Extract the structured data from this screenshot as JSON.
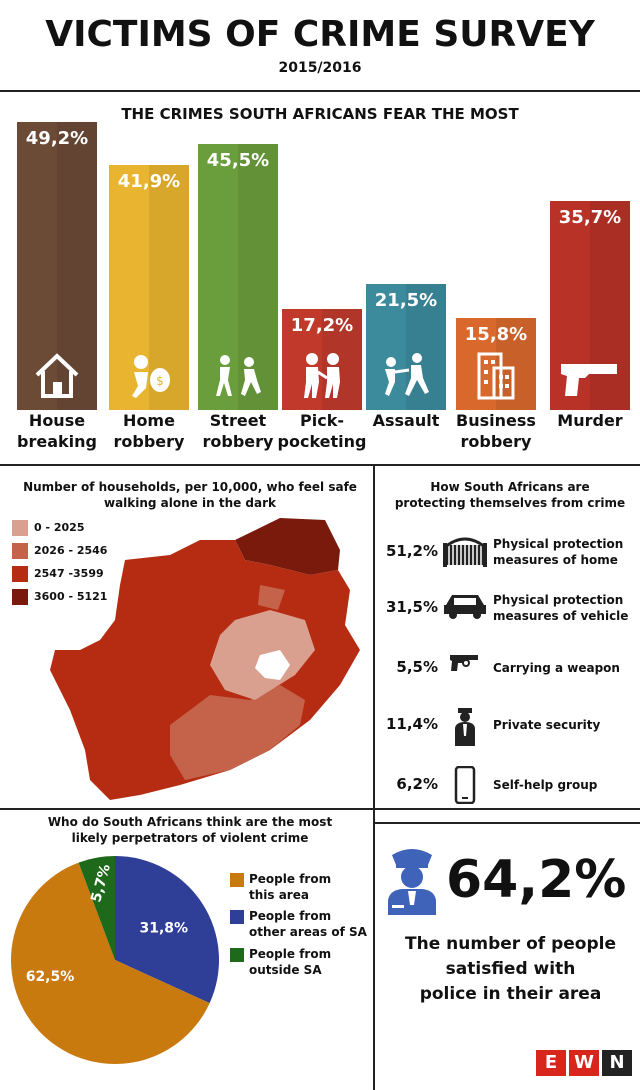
{
  "header": {
    "title": "VICTIMS OF CRIME SURVEY",
    "subtitle": "2015/2016"
  },
  "fear": {
    "title": "THE CRIMES SOUTH AFRICANS FEAR THE MOST",
    "chart_data": {
      "type": "bar",
      "title": "THE CRIMES SOUTH AFRICANS FEAR THE MOST",
      "categories": [
        "House breaking",
        "Home robbery",
        "Street robbery",
        "Pick-pocketing",
        "Assault",
        "Business robbery",
        "Murder"
      ],
      "values": [
        49.2,
        41.9,
        45.5,
        17.2,
        21.5,
        15.8,
        35.7
      ],
      "value_labels": [
        "49,2%",
        "41,9%",
        "45,5%",
        "17,2%",
        "21,5%",
        "15,8%",
        "35,7%"
      ],
      "label_lines": [
        [
          "House",
          "breaking"
        ],
        [
          "Home",
          "robbery"
        ],
        [
          "Street",
          "robbery"
        ],
        [
          "Pick-",
          "pocketing"
        ],
        [
          "Assault",
          ""
        ],
        [
          "Business",
          "robbery"
        ],
        [
          "Murder",
          ""
        ]
      ],
      "icons": [
        "house-icon",
        "robber-icon",
        "street-robbery-icon",
        "pickpocket-icon",
        "assault-icon",
        "building-icon",
        "gun-icon"
      ],
      "colors": [
        "#6b4a36",
        "#e9b530",
        "#6a9d3c",
        "#c0392b",
        "#3b8b9d",
        "#d8682c",
        "#b83227"
      ],
      "ylim": [
        0,
        49.2
      ]
    }
  },
  "map": {
    "title_line1": "Number of households, per 10,000, who feel safe",
    "title_line2": "walking alone in the dark",
    "legend": [
      {
        "label": "0 - 2025",
        "color": "#d9a08f"
      },
      {
        "label": "2026 - 2546",
        "color": "#c4624a"
      },
      {
        "label": "2547 -3599",
        "color": "#b52c12"
      },
      {
        "label": "3600 - 5121",
        "color": "#7a1a0c"
      }
    ]
  },
  "protect": {
    "title_line1": "How South Africans are",
    "title_line2": "protecting themselves from crime",
    "items": [
      {
        "pct": "51,2%",
        "line1": "Physical protection",
        "line2": "measures of home",
        "icon": "gate-icon"
      },
      {
        "pct": "31,5%",
        "line1": "Physical protection",
        "line2": "measures of vehicle",
        "icon": "car-icon"
      },
      {
        "pct": "5,5%",
        "line1": "Carrying a weapon",
        "line2": "",
        "icon": "gun-icon"
      },
      {
        "pct": "11,4%",
        "line1": "Private security",
        "line2": "",
        "icon": "security-guard-icon"
      },
      {
        "pct": "6,2%",
        "line1": "Self-help group",
        "line2": "",
        "icon": "phone-icon"
      }
    ]
  },
  "perp": {
    "title_line1": "Who do South Africans think are the most",
    "title_line2": "likely perpetrators of violent crime",
    "chart_data": {
      "type": "pie",
      "title": "Who do South Africans think are the most likely perpetrators of violent crime",
      "slices": [
        {
          "label_line1": "People from",
          "label_line2": "this area",
          "value": 62.5,
          "text": "62,5%",
          "color": "#c97a0e"
        },
        {
          "label_line1": "People from",
          "label_line2": "other areas of SA",
          "value": 31.8,
          "text": "31,8%",
          "color": "#2f3e96"
        },
        {
          "label_line1": "People from",
          "label_line2": "outside SA",
          "value": 5.7,
          "text": "5,7%",
          "color": "#1f6a1a"
        }
      ]
    }
  },
  "police": {
    "pct": "64,2%",
    "line1": "The number of people",
    "line2": "satisfied with",
    "line3": "police in their area",
    "icon": "police-officer-icon",
    "icon_color": "#3e63b8"
  },
  "logo": {
    "letters": [
      "E",
      "W",
      "N"
    ],
    "colors": [
      "#d9261c",
      "#d9261c",
      "#222222"
    ]
  }
}
